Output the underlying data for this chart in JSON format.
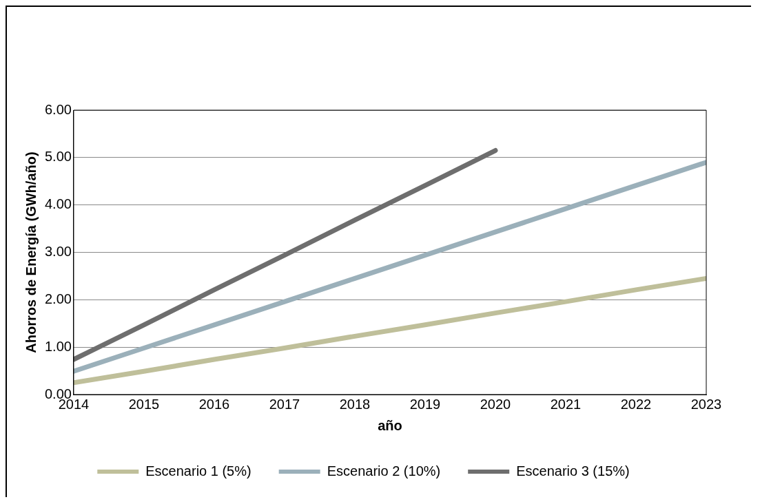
{
  "chart_data": {
    "type": "line",
    "xlabel": "año",
    "ylabel": "Ahorros de Energía (GWh/año)",
    "x": [
      2014,
      2015,
      2016,
      2017,
      2018,
      2019,
      2020,
      2021,
      2022,
      2023
    ],
    "series": [
      {
        "name": "Escenario 1 (5%)",
        "color": "#bfbf9a",
        "values": [
          0.25,
          0.49,
          0.74,
          0.98,
          1.23,
          1.47,
          1.72,
          1.96,
          2.21,
          2.45
        ]
      },
      {
        "name": "Escenario 2 (10%)",
        "color": "#9bb0ba",
        "values": [
          0.49,
          0.98,
          1.47,
          1.96,
          2.45,
          2.94,
          3.43,
          3.92,
          4.41,
          4.9
        ]
      },
      {
        "name": "Escenario 3 (15%)",
        "color": "#6e6e6e",
        "values": [
          0.74,
          1.47,
          2.21,
          2.94,
          3.68,
          4.41,
          5.15,
          null,
          null,
          null
        ]
      }
    ],
    "xlim": [
      2014,
      2023
    ],
    "xticks": [
      2014,
      2015,
      2016,
      2017,
      2018,
      2019,
      2020,
      2021,
      2022,
      2023
    ],
    "ylim": [
      0,
      6
    ],
    "yticks": [
      {
        "value": 0,
        "label": "0.00"
      },
      {
        "value": 1,
        "label": "1.00"
      },
      {
        "value": 2,
        "label": "2.00"
      },
      {
        "value": 3,
        "label": "3.00"
      },
      {
        "value": 4,
        "label": "4.00"
      },
      {
        "value": 5,
        "label": "5.00"
      },
      {
        "value": 6,
        "label": "6.00"
      }
    ],
    "grid": "y",
    "legend": "bottom",
    "marker": "none",
    "line_style": "solid"
  }
}
